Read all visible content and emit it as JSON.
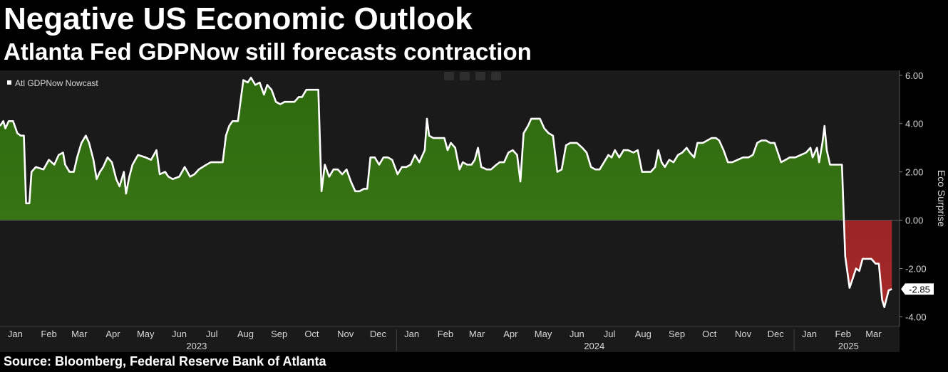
{
  "header": {
    "title": "Negative US Economic Outlook",
    "subtitle": "Atlanta Fed GDPNow still forecasts contraction"
  },
  "footer": {
    "source": "Source: Bloomberg, Federal Reserve Bank of Atlanta"
  },
  "colors": {
    "background": "#000000",
    "plot_background": "#1a1a1a",
    "line": "#ffffff",
    "positive_fill": "#3f7a1a",
    "negative_fill": "#8b1a1a",
    "axis_text": "#d8d8d8"
  },
  "chart_data": {
    "type": "area",
    "legend": {
      "label": "Atl GDPNow Nowcast",
      "placement": "top-left"
    },
    "ylabel": "Eco Surprise",
    "yaxis_side": "right",
    "ylim": [
      -4.4,
      6.2
    ],
    "yticks": [
      6.0,
      4.0,
      2.0,
      0.0,
      -2.0,
      -4.0
    ],
    "ytick_labels": [
      "6.00",
      "4.00",
      "2.00",
      "0.00",
      "-2.00",
      "-4.00"
    ],
    "last_value_label": "-2.85",
    "xlim": [
      "2023-01-01",
      "2025-04-08"
    ],
    "month_ticks": [
      {
        "label": "Jan",
        "date": "2023-01-15"
      },
      {
        "label": "Feb",
        "date": "2023-02-15"
      },
      {
        "label": "Mar",
        "date": "2023-03-15"
      },
      {
        "label": "Apr",
        "date": "2023-04-15"
      },
      {
        "label": "May",
        "date": "2023-05-15"
      },
      {
        "label": "Jun",
        "date": "2023-06-15"
      },
      {
        "label": "Jul",
        "date": "2023-07-15"
      },
      {
        "label": "Aug",
        "date": "2023-08-15"
      },
      {
        "label": "Sep",
        "date": "2023-09-15"
      },
      {
        "label": "Oct",
        "date": "2023-10-15"
      },
      {
        "label": "Nov",
        "date": "2023-11-15"
      },
      {
        "label": "Dec",
        "date": "2023-12-15"
      },
      {
        "label": "Jan",
        "date": "2024-01-15"
      },
      {
        "label": "Feb",
        "date": "2024-02-15"
      },
      {
        "label": "Mar",
        "date": "2024-03-15"
      },
      {
        "label": "Apr",
        "date": "2024-04-15"
      },
      {
        "label": "May",
        "date": "2024-05-15"
      },
      {
        "label": "Jun",
        "date": "2024-06-15"
      },
      {
        "label": "Jul",
        "date": "2024-07-15"
      },
      {
        "label": "Aug",
        "date": "2024-08-15"
      },
      {
        "label": "Sep",
        "date": "2024-09-15"
      },
      {
        "label": "Oct",
        "date": "2024-10-15"
      },
      {
        "label": "Nov",
        "date": "2024-11-15"
      },
      {
        "label": "Dec",
        "date": "2024-12-15"
      },
      {
        "label": "Jan",
        "date": "2025-01-15"
      },
      {
        "label": "Feb",
        "date": "2025-02-15"
      },
      {
        "label": "Mar",
        "date": "2025-03-15"
      }
    ],
    "year_labels": [
      {
        "label": "2023",
        "date": "2023-07-01"
      },
      {
        "label": "2024",
        "date": "2024-07-01"
      },
      {
        "label": "2025",
        "date": "2025-02-20"
      }
    ],
    "year_boundaries": [
      "2024-01-01",
      "2025-01-01"
    ],
    "series": [
      {
        "name": "Atl GDPNow Nowcast",
        "points": [
          [
            "2023-01-01",
            3.9
          ],
          [
            "2023-01-04",
            4.1
          ],
          [
            "2023-01-06",
            3.8
          ],
          [
            "2023-01-09",
            4.1
          ],
          [
            "2023-01-13",
            4.1
          ],
          [
            "2023-01-17",
            3.6
          ],
          [
            "2023-01-20",
            3.5
          ],
          [
            "2023-01-23",
            3.5
          ],
          [
            "2023-01-25",
            0.7
          ],
          [
            "2023-01-28",
            0.7
          ],
          [
            "2023-01-30",
            2.0
          ],
          [
            "2023-02-03",
            2.2
          ],
          [
            "2023-02-10",
            2.1
          ],
          [
            "2023-02-15",
            2.5
          ],
          [
            "2023-02-20",
            2.3
          ],
          [
            "2023-02-24",
            2.7
          ],
          [
            "2023-02-28",
            2.8
          ],
          [
            "2023-03-02",
            2.3
          ],
          [
            "2023-03-06",
            2.0
          ],
          [
            "2023-03-10",
            2.0
          ],
          [
            "2023-03-13",
            2.6
          ],
          [
            "2023-03-17",
            3.2
          ],
          [
            "2023-03-21",
            3.5
          ],
          [
            "2023-03-24",
            3.2
          ],
          [
            "2023-03-28",
            2.5
          ],
          [
            "2023-03-31",
            1.7
          ],
          [
            "2023-04-03",
            2.0
          ],
          [
            "2023-04-06",
            2.2
          ],
          [
            "2023-04-10",
            2.6
          ],
          [
            "2023-04-14",
            2.4
          ],
          [
            "2023-04-18",
            1.7
          ],
          [
            "2023-04-21",
            1.4
          ],
          [
            "2023-04-25",
            2.0
          ],
          [
            "2023-04-27",
            1.1
          ],
          [
            "2023-04-30",
            1.8
          ],
          [
            "2023-05-03",
            2.3
          ],
          [
            "2023-05-08",
            2.7
          ],
          [
            "2023-05-15",
            2.6
          ],
          [
            "2023-05-20",
            2.5
          ],
          [
            "2023-05-25",
            2.9
          ],
          [
            "2023-05-28",
            1.9
          ],
          [
            "2023-06-02",
            2.0
          ],
          [
            "2023-06-05",
            1.8
          ],
          [
            "2023-06-09",
            1.7
          ],
          [
            "2023-06-15",
            1.8
          ],
          [
            "2023-06-20",
            2.2
          ],
          [
            "2023-06-25",
            1.8
          ],
          [
            "2023-06-29",
            1.9
          ],
          [
            "2023-07-03",
            2.1
          ],
          [
            "2023-07-10",
            2.3
          ],
          [
            "2023-07-14",
            2.4
          ],
          [
            "2023-07-20",
            2.4
          ],
          [
            "2023-07-25",
            2.4
          ],
          [
            "2023-07-28",
            3.5
          ],
          [
            "2023-07-31",
            3.9
          ],
          [
            "2023-08-03",
            4.1
          ],
          [
            "2023-08-08",
            4.1
          ],
          [
            "2023-08-13",
            5.8
          ],
          [
            "2023-08-17",
            5.7
          ],
          [
            "2023-08-20",
            5.9
          ],
          [
            "2023-08-24",
            5.6
          ],
          [
            "2023-08-28",
            5.7
          ],
          [
            "2023-09-01",
            5.2
          ],
          [
            "2023-09-04",
            5.6
          ],
          [
            "2023-09-08",
            5.4
          ],
          [
            "2023-09-12",
            4.9
          ],
          [
            "2023-09-16",
            4.8
          ],
          [
            "2023-09-20",
            4.9
          ],
          [
            "2023-09-25",
            4.9
          ],
          [
            "2023-09-29",
            4.9
          ],
          [
            "2023-10-03",
            5.1
          ],
          [
            "2023-10-06",
            5.1
          ],
          [
            "2023-10-10",
            5.4
          ],
          [
            "2023-10-14",
            5.4
          ],
          [
            "2023-10-18",
            5.4
          ],
          [
            "2023-10-21",
            5.4
          ],
          [
            "2023-10-24",
            1.2
          ],
          [
            "2023-10-27",
            2.3
          ],
          [
            "2023-10-31",
            1.8
          ],
          [
            "2023-11-04",
            2.1
          ],
          [
            "2023-11-08",
            2.1
          ],
          [
            "2023-11-12",
            1.9
          ],
          [
            "2023-11-16",
            2.1
          ],
          [
            "2023-11-20",
            1.6
          ],
          [
            "2023-11-24",
            1.2
          ],
          [
            "2023-11-28",
            1.2
          ],
          [
            "2023-12-02",
            1.3
          ],
          [
            "2023-12-05",
            1.3
          ],
          [
            "2023-12-08",
            2.6
          ],
          [
            "2023-12-12",
            2.6
          ],
          [
            "2023-12-16",
            2.3
          ],
          [
            "2023-12-20",
            2.6
          ],
          [
            "2023-12-24",
            2.6
          ],
          [
            "2023-12-28",
            2.5
          ],
          [
            "2024-01-02",
            1.9
          ],
          [
            "2024-01-06",
            2.2
          ],
          [
            "2024-01-10",
            2.2
          ],
          [
            "2024-01-14",
            2.3
          ],
          [
            "2024-01-18",
            2.7
          ],
          [
            "2024-01-22",
            2.4
          ],
          [
            "2024-01-27",
            2.9
          ],
          [
            "2024-01-29",
            4.2
          ],
          [
            "2024-01-31",
            3.5
          ],
          [
            "2024-02-04",
            3.4
          ],
          [
            "2024-02-08",
            3.4
          ],
          [
            "2024-02-14",
            3.4
          ],
          [
            "2024-02-17",
            2.9
          ],
          [
            "2024-02-20",
            3.2
          ],
          [
            "2024-02-24",
            3.0
          ],
          [
            "2024-02-28",
            2.1
          ],
          [
            "2024-03-02",
            2.4
          ],
          [
            "2024-03-06",
            2.3
          ],
          [
            "2024-03-10",
            2.3
          ],
          [
            "2024-03-13",
            2.5
          ],
          [
            "2024-03-16",
            3.0
          ],
          [
            "2024-03-19",
            2.2
          ],
          [
            "2024-03-24",
            2.1
          ],
          [
            "2024-03-28",
            2.1
          ],
          [
            "2024-04-02",
            2.3
          ],
          [
            "2024-04-05",
            2.4
          ],
          [
            "2024-04-09",
            2.4
          ],
          [
            "2024-04-13",
            2.8
          ],
          [
            "2024-04-17",
            2.9
          ],
          [
            "2024-04-21",
            2.7
          ],
          [
            "2024-04-24",
            1.6
          ],
          [
            "2024-04-27",
            3.6
          ],
          [
            "2024-05-01",
            3.9
          ],
          [
            "2024-05-04",
            4.2
          ],
          [
            "2024-05-08",
            4.2
          ],
          [
            "2024-05-12",
            4.2
          ],
          [
            "2024-05-16",
            3.8
          ],
          [
            "2024-05-20",
            3.6
          ],
          [
            "2024-05-24",
            3.5
          ],
          [
            "2024-05-28",
            2.0
          ],
          [
            "2024-06-01",
            2.1
          ],
          [
            "2024-06-05",
            3.1
          ],
          [
            "2024-06-09",
            3.2
          ],
          [
            "2024-06-15",
            3.2
          ],
          [
            "2024-06-20",
            3.0
          ],
          [
            "2024-06-24",
            2.8
          ],
          [
            "2024-06-28",
            2.2
          ],
          [
            "2024-07-02",
            2.1
          ],
          [
            "2024-07-06",
            2.1
          ],
          [
            "2024-07-10",
            2.4
          ],
          [
            "2024-07-14",
            2.7
          ],
          [
            "2024-07-17",
            2.6
          ],
          [
            "2024-07-20",
            2.9
          ],
          [
            "2024-07-24",
            2.6
          ],
          [
            "2024-07-28",
            2.9
          ],
          [
            "2024-08-01",
            2.9
          ],
          [
            "2024-08-06",
            2.8
          ],
          [
            "2024-08-10",
            2.9
          ],
          [
            "2024-08-14",
            2.0
          ],
          [
            "2024-08-18",
            2.0
          ],
          [
            "2024-08-22",
            2.0
          ],
          [
            "2024-08-26",
            2.2
          ],
          [
            "2024-08-29",
            2.9
          ],
          [
            "2024-09-01",
            2.4
          ],
          [
            "2024-09-04",
            2.2
          ],
          [
            "2024-09-08",
            2.5
          ],
          [
            "2024-09-12",
            2.4
          ],
          [
            "2024-09-16",
            2.7
          ],
          [
            "2024-09-20",
            2.8
          ],
          [
            "2024-09-24",
            3.0
          ],
          [
            "2024-09-27",
            2.8
          ],
          [
            "2024-10-01",
            2.6
          ],
          [
            "2024-10-04",
            3.2
          ],
          [
            "2024-10-09",
            3.2
          ],
          [
            "2024-10-13",
            3.3
          ],
          [
            "2024-10-17",
            3.4
          ],
          [
            "2024-10-21",
            3.4
          ],
          [
            "2024-10-24",
            3.3
          ],
          [
            "2024-10-28",
            2.9
          ],
          [
            "2024-11-01",
            2.4
          ],
          [
            "2024-11-05",
            2.4
          ],
          [
            "2024-11-10",
            2.5
          ],
          [
            "2024-11-15",
            2.6
          ],
          [
            "2024-11-20",
            2.6
          ],
          [
            "2024-11-24",
            2.7
          ],
          [
            "2024-11-28",
            3.2
          ],
          [
            "2024-12-02",
            3.3
          ],
          [
            "2024-12-06",
            3.3
          ],
          [
            "2024-12-10",
            3.2
          ],
          [
            "2024-12-14",
            3.2
          ],
          [
            "2024-12-17",
            2.8
          ],
          [
            "2024-12-20",
            2.4
          ],
          [
            "2024-12-24",
            2.5
          ],
          [
            "2024-12-28",
            2.6
          ],
          [
            "2025-01-02",
            2.6
          ],
          [
            "2025-01-07",
            2.7
          ],
          [
            "2025-01-12",
            2.8
          ],
          [
            "2025-01-16",
            3.0
          ],
          [
            "2025-01-18",
            2.6
          ],
          [
            "2025-01-22",
            3.0
          ],
          [
            "2025-01-24",
            2.4
          ],
          [
            "2025-01-27",
            3.2
          ],
          [
            "2025-01-29",
            3.9
          ],
          [
            "2025-01-31",
            2.9
          ],
          [
            "2025-02-03",
            2.3
          ],
          [
            "2025-02-07",
            2.3
          ],
          [
            "2025-02-11",
            2.3
          ],
          [
            "2025-02-14",
            2.3
          ],
          [
            "2025-02-17",
            -1.5
          ],
          [
            "2025-02-21",
            -2.8
          ],
          [
            "2025-02-24",
            -2.4
          ],
          [
            "2025-02-27",
            -2.0
          ],
          [
            "2025-03-02",
            -2.1
          ],
          [
            "2025-03-05",
            -1.6
          ],
          [
            "2025-03-09",
            -1.6
          ],
          [
            "2025-03-13",
            -1.6
          ],
          [
            "2025-03-17",
            -1.8
          ],
          [
            "2025-03-20",
            -1.8
          ],
          [
            "2025-03-23",
            -3.3
          ],
          [
            "2025-03-25",
            -3.6
          ],
          [
            "2025-03-29",
            -2.9
          ],
          [
            "2025-04-01",
            -2.85
          ]
        ]
      }
    ]
  }
}
